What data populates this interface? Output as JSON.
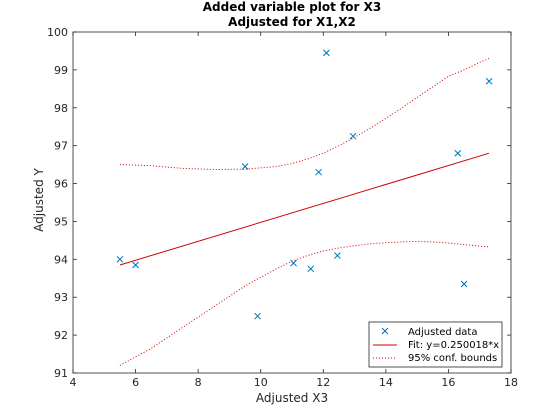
{
  "chart_data": {
    "type": "scatter",
    "title": "Added variable plot for X3",
    "subtitle": "Adjusted for X1,X2",
    "xlabel": "Adjusted X3",
    "ylabel": "Adjusted Y",
    "xlim": [
      4,
      18
    ],
    "ylim": [
      91,
      100
    ],
    "xticks": [
      "4",
      "6",
      "8",
      "10",
      "12",
      "14",
      "16",
      "18"
    ],
    "yticks": [
      "91",
      "92",
      "93",
      "94",
      "95",
      "96",
      "97",
      "98",
      "99",
      "100"
    ],
    "grid": false,
    "legend_position": "bottom-right",
    "series": [
      {
        "name": "Adjusted data",
        "marker": "x",
        "color": "#0072BD",
        "x": [
          5.5,
          6.0,
          9.5,
          9.9,
          11.05,
          11.6,
          11.85,
          12.1,
          12.45,
          12.95,
          16.3,
          16.5,
          17.3
        ],
        "y": [
          94.0,
          93.85,
          96.45,
          92.5,
          93.9,
          93.75,
          96.3,
          99.45,
          94.1,
          97.25,
          96.8,
          93.35,
          98.7
        ]
      },
      {
        "name": "Fit: y=0.250018*x",
        "style": "solid",
        "color": "#D00000",
        "x": [
          5.5,
          17.3
        ],
        "y": [
          93.85,
          96.8
        ]
      },
      {
        "name": "95% conf. bounds",
        "style": "dotted",
        "color": "#D00000",
        "upper": {
          "x": [
            5.5,
            6.5,
            7.5,
            8.5,
            9.5,
            10.5,
            11.0,
            11.5,
            12.0,
            12.5,
            13.0,
            13.5,
            14.0,
            14.5,
            15.0,
            15.5,
            16.0,
            16.5,
            17.0,
            17.3
          ],
          "y": [
            96.5,
            96.47,
            96.4,
            96.37,
            96.38,
            96.45,
            96.53,
            96.65,
            96.8,
            97.0,
            97.22,
            97.46,
            97.72,
            97.99,
            98.27,
            98.55,
            98.83,
            99.0,
            99.2,
            99.3
          ]
        },
        "lower": {
          "x": [
            5.5,
            6.5,
            7.5,
            8.5,
            9.5,
            10.5,
            11.0,
            11.5,
            12.0,
            12.5,
            13.0,
            13.5,
            14.0,
            14.5,
            15.0,
            15.5,
            16.0,
            16.5,
            17.0,
            17.3
          ],
          "y": [
            91.2,
            91.65,
            92.2,
            92.75,
            93.3,
            93.75,
            93.95,
            94.1,
            94.22,
            94.3,
            94.36,
            94.41,
            94.44,
            94.46,
            94.47,
            94.46,
            94.43,
            94.39,
            94.35,
            94.33
          ]
        }
      }
    ]
  }
}
